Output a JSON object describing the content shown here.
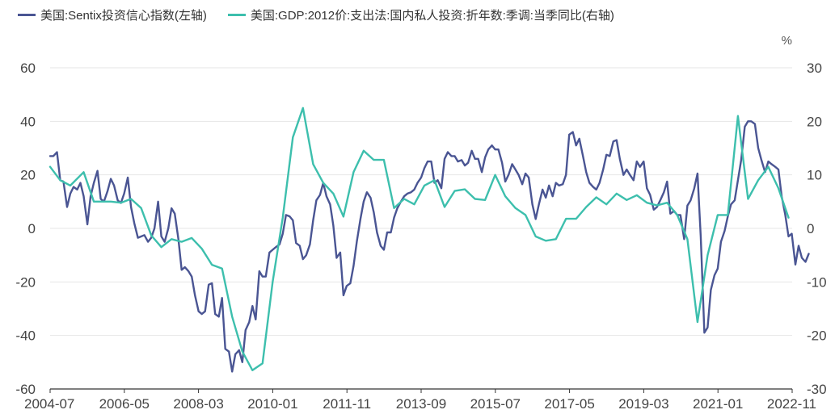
{
  "chart_data": {
    "type": "line",
    "left_axis": {
      "min": -60,
      "max": 60,
      "ticks": [
        60,
        40,
        20,
        0,
        -20,
        -40,
        -60
      ]
    },
    "right_axis": {
      "min": -30,
      "max": 30,
      "ticks": [
        30,
        20,
        10,
        0,
        -10,
        -20,
        -30
      ],
      "unit": "%"
    },
    "x_tick_labels": [
      "2004-07",
      "2006-05",
      "2008-03",
      "2010-01",
      "2011-11",
      "2013-09",
      "2015-07",
      "2017-05",
      "2019-03",
      "2021-01",
      "2022-11"
    ],
    "x_range": [
      2004.5,
      2022.84
    ],
    "series": [
      {
        "name": "美国:Sentix投资信心指数(左轴)",
        "axis": "left",
        "color": "#4a5593",
        "points": [
          [
            2004.5,
            27
          ],
          [
            2004.58,
            27
          ],
          [
            2004.67,
            28.5
          ],
          [
            2004.75,
            18
          ],
          [
            2004.83,
            17.5
          ],
          [
            2004.92,
            8
          ],
          [
            2005.0,
            13
          ],
          [
            2005.08,
            15.5
          ],
          [
            2005.17,
            14.5
          ],
          [
            2005.25,
            17
          ],
          [
            2005.33,
            12
          ],
          [
            2005.42,
            1.5
          ],
          [
            2005.5,
            12
          ],
          [
            2005.58,
            17
          ],
          [
            2005.67,
            21.5
          ],
          [
            2005.75,
            11
          ],
          [
            2005.83,
            10
          ],
          [
            2005.92,
            14
          ],
          [
            2006.0,
            18.5
          ],
          [
            2006.08,
            16
          ],
          [
            2006.17,
            10.5
          ],
          [
            2006.25,
            9.5
          ],
          [
            2006.33,
            13
          ],
          [
            2006.42,
            19
          ],
          [
            2006.5,
            8
          ],
          [
            2006.58,
            2
          ],
          [
            2006.67,
            -3.5
          ],
          [
            2006.75,
            -3
          ],
          [
            2006.83,
            -2.5
          ],
          [
            2006.92,
            -5
          ],
          [
            2007.0,
            -3.5
          ],
          [
            2007.08,
            0
          ],
          [
            2007.17,
            10
          ],
          [
            2007.25,
            -3
          ],
          [
            2007.33,
            -5
          ],
          [
            2007.42,
            0
          ],
          [
            2007.5,
            7.5
          ],
          [
            2007.58,
            5.5
          ],
          [
            2007.67,
            -4
          ],
          [
            2007.75,
            -15.5
          ],
          [
            2007.83,
            -14.5
          ],
          [
            2007.92,
            -16
          ],
          [
            2008.0,
            -18
          ],
          [
            2008.08,
            -25
          ],
          [
            2008.17,
            -31
          ],
          [
            2008.25,
            -32
          ],
          [
            2008.33,
            -31
          ],
          [
            2008.42,
            -21
          ],
          [
            2008.5,
            -20.5
          ],
          [
            2008.58,
            -32
          ],
          [
            2008.67,
            -33
          ],
          [
            2008.75,
            -26
          ],
          [
            2008.83,
            -45
          ],
          [
            2008.92,
            -46
          ],
          [
            2009.0,
            -53.5
          ],
          [
            2009.08,
            -47
          ],
          [
            2009.17,
            -45.5
          ],
          [
            2009.25,
            -50
          ],
          [
            2009.33,
            -38
          ],
          [
            2009.42,
            -35
          ],
          [
            2009.5,
            -29
          ],
          [
            2009.58,
            -34
          ],
          [
            2009.67,
            -16
          ],
          [
            2009.75,
            -18
          ],
          [
            2009.83,
            -18
          ],
          [
            2009.92,
            -9
          ],
          [
            2010.0,
            -8
          ],
          [
            2010.08,
            -7
          ],
          [
            2010.17,
            -6
          ],
          [
            2010.25,
            -2
          ],
          [
            2010.33,
            5
          ],
          [
            2010.42,
            4.5
          ],
          [
            2010.5,
            3
          ],
          [
            2010.58,
            -5.5
          ],
          [
            2010.67,
            -6.5
          ],
          [
            2010.75,
            -11.5
          ],
          [
            2010.83,
            -10
          ],
          [
            2010.92,
            -6
          ],
          [
            2011.0,
            3
          ],
          [
            2011.08,
            10.5
          ],
          [
            2011.17,
            12.5
          ],
          [
            2011.25,
            17
          ],
          [
            2011.33,
            12
          ],
          [
            2011.42,
            9
          ],
          [
            2011.5,
            1
          ],
          [
            2011.58,
            -11
          ],
          [
            2011.67,
            -9
          ],
          [
            2011.75,
            -25
          ],
          [
            2011.83,
            -21.5
          ],
          [
            2011.92,
            -20.5
          ],
          [
            2012.0,
            -14
          ],
          [
            2012.08,
            -5
          ],
          [
            2012.17,
            3.5
          ],
          [
            2012.25,
            10
          ],
          [
            2012.33,
            13.5
          ],
          [
            2012.42,
            11.5
          ],
          [
            2012.5,
            6
          ],
          [
            2012.58,
            -1.5
          ],
          [
            2012.67,
            -6.5
          ],
          [
            2012.75,
            -8
          ],
          [
            2012.83,
            -1.5
          ],
          [
            2012.92,
            -1.5
          ],
          [
            2013.0,
            4
          ],
          [
            2013.08,
            7.5
          ],
          [
            2013.17,
            10
          ],
          [
            2013.25,
            12
          ],
          [
            2013.33,
            13
          ],
          [
            2013.42,
            13.5
          ],
          [
            2013.5,
            14.5
          ],
          [
            2013.58,
            17
          ],
          [
            2013.67,
            19
          ],
          [
            2013.75,
            22.5
          ],
          [
            2013.83,
            25
          ],
          [
            2013.92,
            25
          ],
          [
            2014.0,
            17
          ],
          [
            2014.08,
            18
          ],
          [
            2014.17,
            15
          ],
          [
            2014.25,
            26
          ],
          [
            2014.33,
            28.5
          ],
          [
            2014.42,
            27
          ],
          [
            2014.5,
            27
          ],
          [
            2014.58,
            25
          ],
          [
            2014.67,
            25.5
          ],
          [
            2014.75,
            23.5
          ],
          [
            2014.83,
            24.5
          ],
          [
            2014.92,
            29
          ],
          [
            2015.0,
            26
          ],
          [
            2015.08,
            26
          ],
          [
            2015.17,
            21
          ],
          [
            2015.25,
            26.5
          ],
          [
            2015.33,
            29.5
          ],
          [
            2015.42,
            31
          ],
          [
            2015.5,
            29.5
          ],
          [
            2015.58,
            29.5
          ],
          [
            2015.67,
            24.5
          ],
          [
            2015.75,
            17.5
          ],
          [
            2015.83,
            20
          ],
          [
            2015.92,
            24
          ],
          [
            2016.0,
            22
          ],
          [
            2016.08,
            20
          ],
          [
            2016.17,
            16.5
          ],
          [
            2016.25,
            20.5
          ],
          [
            2016.33,
            19
          ],
          [
            2016.42,
            9
          ],
          [
            2016.5,
            3.5
          ],
          [
            2016.58,
            9
          ],
          [
            2016.67,
            14.5
          ],
          [
            2016.75,
            11.5
          ],
          [
            2016.83,
            16
          ],
          [
            2016.92,
            12
          ],
          [
            2017.0,
            17
          ],
          [
            2017.08,
            16
          ],
          [
            2017.17,
            16.5
          ],
          [
            2017.25,
            20
          ],
          [
            2017.33,
            35
          ],
          [
            2017.42,
            36
          ],
          [
            2017.5,
            31
          ],
          [
            2017.58,
            33.5
          ],
          [
            2017.67,
            27
          ],
          [
            2017.75,
            21
          ],
          [
            2017.83,
            17
          ],
          [
            2017.92,
            15.5
          ],
          [
            2018.0,
            14.5
          ],
          [
            2018.08,
            17
          ],
          [
            2018.17,
            22
          ],
          [
            2018.25,
            27.5
          ],
          [
            2018.33,
            27
          ],
          [
            2018.42,
            32.5
          ],
          [
            2018.5,
            33
          ],
          [
            2018.58,
            26
          ],
          [
            2018.67,
            20
          ],
          [
            2018.75,
            22
          ],
          [
            2018.83,
            20
          ],
          [
            2018.92,
            18
          ],
          [
            2019.0,
            25
          ],
          [
            2019.08,
            23
          ],
          [
            2019.17,
            25
          ],
          [
            2019.25,
            15
          ],
          [
            2019.33,
            12.5
          ],
          [
            2019.42,
            7
          ],
          [
            2019.5,
            8
          ],
          [
            2019.58,
            10.5
          ],
          [
            2019.67,
            13.5
          ],
          [
            2019.75,
            17.5
          ],
          [
            2019.83,
            5.5
          ],
          [
            2019.92,
            6.5
          ],
          [
            2020.0,
            5
          ],
          [
            2020.08,
            5
          ],
          [
            2020.17,
            -4
          ],
          [
            2020.25,
            8.5
          ],
          [
            2020.33,
            10.5
          ],
          [
            2020.42,
            15
          ],
          [
            2020.5,
            20.5
          ],
          [
            2020.58,
            -3
          ],
          [
            2020.67,
            -39
          ],
          [
            2020.75,
            -37
          ],
          [
            2020.83,
            -23
          ],
          [
            2020.92,
            -17.5
          ],
          [
            2021.0,
            -15
          ],
          [
            2021.08,
            -5
          ],
          [
            2021.17,
            -1
          ],
          [
            2021.25,
            4.5
          ],
          [
            2021.33,
            9
          ],
          [
            2021.42,
            10.5
          ],
          [
            2021.5,
            18
          ],
          [
            2021.58,
            25.5
          ],
          [
            2021.67,
            38
          ],
          [
            2021.75,
            40
          ],
          [
            2021.83,
            40
          ],
          [
            2021.92,
            39
          ],
          [
            2022.0,
            30
          ],
          [
            2022.08,
            25.5
          ],
          [
            2022.17,
            21
          ],
          [
            2022.25,
            25
          ],
          [
            2022.33,
            24
          ],
          [
            2022.42,
            23
          ],
          [
            2022.5,
            22
          ],
          [
            2022.58,
            12
          ],
          [
            2022.67,
            5
          ],
          [
            2022.75,
            -3
          ],
          [
            2022.83,
            -2
          ],
          [
            2022.92,
            -13.5
          ],
          [
            2023.0,
            -6.5
          ],
          [
            2023.08,
            -11
          ],
          [
            2023.17,
            -12.5
          ],
          [
            2023.25,
            -9.5
          ]
        ]
      },
      {
        "name": "美国:GDP:2012价:支出法:国内私人投资:折年数:季调:当季同比(右轴)",
        "axis": "right",
        "color": "#3dbfad",
        "points": [
          [
            2004.5,
            11.5
          ],
          [
            2004.75,
            9
          ],
          [
            2005.0,
            8
          ],
          [
            2005.33,
            10.5
          ],
          [
            2005.58,
            5
          ],
          [
            2005.75,
            5
          ],
          [
            2006.0,
            5
          ],
          [
            2006.25,
            4.8
          ],
          [
            2006.5,
            5.5
          ],
          [
            2006.75,
            3.8
          ],
          [
            2007.0,
            -1.3
          ],
          [
            2007.25,
            -3.5
          ],
          [
            2007.5,
            -2
          ],
          [
            2007.75,
            -2.5
          ],
          [
            2008.0,
            -1.8
          ],
          [
            2008.25,
            -3.8
          ],
          [
            2008.5,
            -6.8
          ],
          [
            2008.75,
            -7.5
          ],
          [
            2009.0,
            -16.5
          ],
          [
            2009.25,
            -23
          ],
          [
            2009.5,
            -26.5
          ],
          [
            2009.75,
            -25.2
          ],
          [
            2010.0,
            -10
          ],
          [
            2010.25,
            2
          ],
          [
            2010.5,
            17
          ],
          [
            2010.75,
            22.5
          ],
          [
            2011.0,
            12
          ],
          [
            2011.25,
            8.5
          ],
          [
            2011.5,
            6.5
          ],
          [
            2011.75,
            2.2
          ],
          [
            2012.0,
            10.5
          ],
          [
            2012.25,
            14.5
          ],
          [
            2012.5,
            12.8
          ],
          [
            2012.75,
            12.8
          ],
          [
            2013.0,
            3.8
          ],
          [
            2013.25,
            5.5
          ],
          [
            2013.5,
            4.5
          ],
          [
            2013.75,
            8
          ],
          [
            2014.0,
            9
          ],
          [
            2014.25,
            4
          ],
          [
            2014.5,
            7
          ],
          [
            2014.75,
            7.3
          ],
          [
            2015.0,
            5.5
          ],
          [
            2015.25,
            5.3
          ],
          [
            2015.5,
            10
          ],
          [
            2015.75,
            6
          ],
          [
            2016.0,
            3.8
          ],
          [
            2016.25,
            2.5
          ],
          [
            2016.5,
            -1.5
          ],
          [
            2016.75,
            -2.3
          ],
          [
            2017.0,
            -2
          ],
          [
            2017.25,
            1.8
          ],
          [
            2017.5,
            1.8
          ],
          [
            2017.75,
            4
          ],
          [
            2018.0,
            5.8
          ],
          [
            2018.25,
            4.5
          ],
          [
            2018.5,
            6.5
          ],
          [
            2018.75,
            5.3
          ],
          [
            2019.0,
            6.2
          ],
          [
            2019.25,
            4.8
          ],
          [
            2019.5,
            4.3
          ],
          [
            2019.75,
            4.8
          ],
          [
            2020.0,
            2.5
          ],
          [
            2020.25,
            -2
          ],
          [
            2020.5,
            -17.5
          ],
          [
            2020.75,
            -5
          ],
          [
            2021.0,
            2.5
          ],
          [
            2021.25,
            2.5
          ],
          [
            2021.5,
            21
          ],
          [
            2021.75,
            5.5
          ],
          [
            2022.0,
            9
          ],
          [
            2022.25,
            11.5
          ],
          [
            2022.5,
            7.5
          ],
          [
            2022.75,
            2
          ]
        ]
      }
    ]
  }
}
